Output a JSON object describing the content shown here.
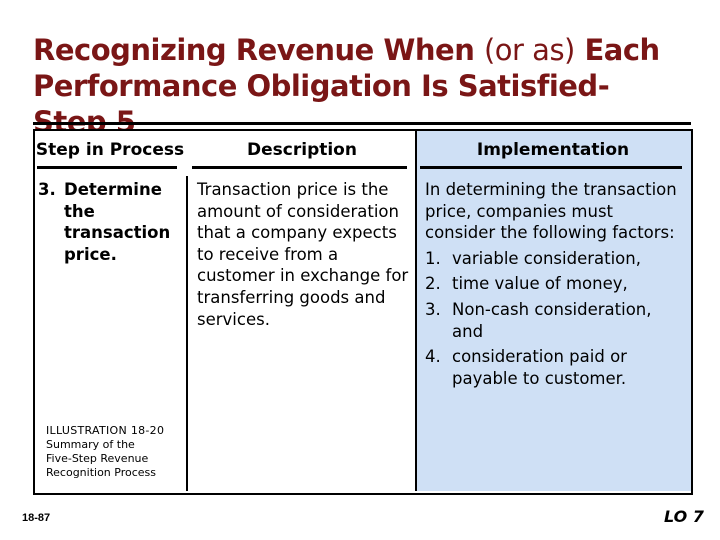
{
  "slide": {
    "title_line1_a": "Recognizing Revenue When",
    "title_line1_b": "(or as)",
    "title_line1_c": "Each",
    "title_line2": "Performance Obligation Is Satisfied-",
    "title_line3": "Step 5"
  },
  "table": {
    "headers": [
      "Step in Process",
      "Description",
      "Implementation"
    ],
    "step": {
      "number": "3.",
      "line1": "Determine",
      "rest": [
        "the",
        "transaction",
        "price."
      ]
    },
    "description": "Transaction price is the amount of consideration that a company expects to receive from a customer in exchange for transferring goods and services.",
    "implementation_intro": "In determining the transaction price, companies must consider the following factors:",
    "implementation_items": [
      {
        "n": "1.",
        "text": "variable consideration,"
      },
      {
        "n": "2.",
        "text": "time value of money,"
      },
      {
        "n": "3.",
        "text": "Non-cash consideration, and"
      },
      {
        "n": "4.",
        "text": "consideration paid or payable to customer."
      }
    ]
  },
  "illustration": {
    "label": "ILLUSTRATION 18-20",
    "caption_lines": [
      "Summary of the",
      "Five-Step Revenue",
      "Recognition Process"
    ]
  },
  "footer": {
    "page_number": "18-87",
    "lo": "LO 7"
  },
  "colors": {
    "title": "#7a1616",
    "impl_bg": "#cfe0f5"
  }
}
